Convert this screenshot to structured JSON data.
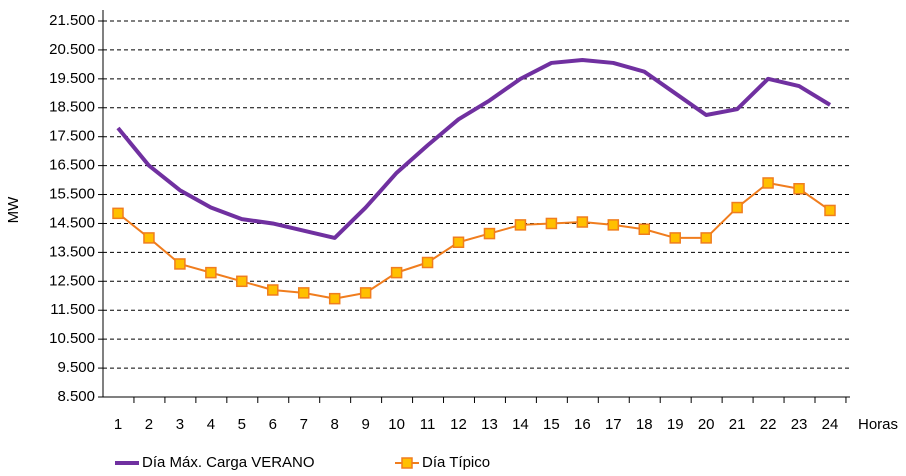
{
  "chart_data": {
    "type": "line",
    "ylabel": "MW",
    "xlabel": "Horas",
    "categories": [
      "1",
      "2",
      "3",
      "4",
      "5",
      "6",
      "7",
      "8",
      "9",
      "10",
      "11",
      "12",
      "13",
      "14",
      "15",
      "16",
      "17",
      "18",
      "19",
      "20",
      "21",
      "22",
      "23",
      "24"
    ],
    "series": [
      {
        "name": "Día Máx. Carga VERANO",
        "color": "#7030a0",
        "marker": false,
        "values": [
          17800,
          16500,
          15650,
          15050,
          14650,
          14500,
          14250,
          14000,
          15050,
          16250,
          17200,
          18100,
          18750,
          19500,
          20050,
          20150,
          20050,
          19750,
          19000,
          18250,
          18450,
          19500,
          19250,
          18600
        ]
      },
      {
        "name": "Día Típico",
        "color": "#f07d1e",
        "marker": true,
        "values": [
          14850,
          14000,
          13100,
          12800,
          12500,
          12200,
          12100,
          11900,
          12100,
          12800,
          13150,
          13850,
          14150,
          14450,
          14500,
          14550,
          14450,
          14300,
          14000,
          14000,
          15050,
          15900,
          15700,
          14950
        ]
      }
    ],
    "ylim": [
      8500,
      21500
    ],
    "yticks": [
      {
        "value": 8500,
        "label": "8.500"
      },
      {
        "value": 9500,
        "label": "9.500"
      },
      {
        "value": 10500,
        "label": "10.500"
      },
      {
        "value": 11500,
        "label": "11.500"
      },
      {
        "value": 12500,
        "label": "12.500"
      },
      {
        "value": 13500,
        "label": "13.500"
      },
      {
        "value": 14500,
        "label": "14.500"
      },
      {
        "value": 15500,
        "label": "15.500"
      },
      {
        "value": 16500,
        "label": "16.500"
      },
      {
        "value": 17500,
        "label": "17.500"
      },
      {
        "value": 18500,
        "label": "18.500"
      },
      {
        "value": 19500,
        "label": "19.500"
      },
      {
        "value": 20500,
        "label": "20.500"
      },
      {
        "value": 21500,
        "label": "21.500"
      }
    ],
    "grid": true,
    "legend": "bottom"
  }
}
